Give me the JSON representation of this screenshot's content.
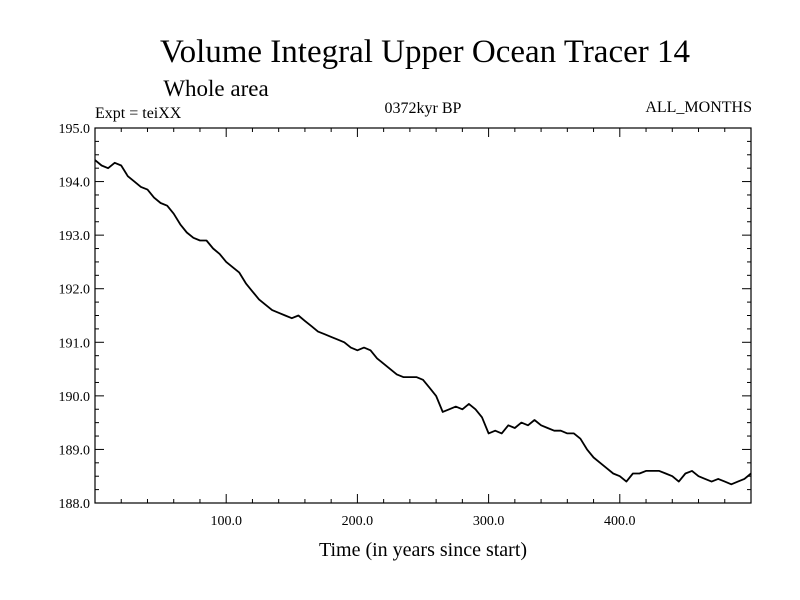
{
  "chart_data": {
    "type": "line",
    "title": "Volume Integral Upper Ocean Tracer 14",
    "subtitle": "Whole area",
    "experiment": "Expt = teiXX",
    "period": "0372kyr BP",
    "months": "ALL_MONTHS",
    "xlabel": "Time (in years since start)",
    "ylabel": "",
    "xlim": [
      0,
      500
    ],
    "ylim": [
      188.0,
      195.0
    ],
    "x_ticks": [
      100,
      200,
      300,
      400
    ],
    "x_tick_labels": [
      "100.0",
      "200.0",
      "300.0",
      "400.0"
    ],
    "y_ticks": [
      188,
      189,
      190,
      191,
      192,
      193,
      194,
      195
    ],
    "y_tick_labels": [
      "188.0",
      "189.0",
      "190.0",
      "191.0",
      "192.0",
      "193.0",
      "194.0",
      "195.0"
    ],
    "grid": false,
    "series": [
      {
        "name": "Tracer 14",
        "x": [
          0,
          5,
          10,
          15,
          20,
          25,
          30,
          35,
          40,
          45,
          50,
          55,
          60,
          65,
          70,
          75,
          80,
          85,
          90,
          95,
          100,
          105,
          110,
          115,
          120,
          125,
          130,
          135,
          140,
          145,
          150,
          155,
          160,
          165,
          170,
          175,
          180,
          185,
          190,
          195,
          200,
          205,
          210,
          215,
          220,
          225,
          230,
          235,
          240,
          245,
          250,
          255,
          260,
          265,
          270,
          275,
          280,
          285,
          290,
          295,
          300,
          305,
          310,
          315,
          320,
          325,
          330,
          335,
          340,
          345,
          350,
          355,
          360,
          365,
          370,
          375,
          380,
          385,
          390,
          395,
          400,
          405,
          410,
          415,
          420,
          425,
          430,
          435,
          440,
          445,
          450,
          455,
          460,
          465,
          470,
          475,
          480,
          485,
          490,
          495,
          500
        ],
        "values": [
          194.4,
          194.3,
          194.25,
          194.35,
          194.3,
          194.1,
          194.0,
          193.9,
          193.85,
          193.7,
          193.6,
          193.55,
          193.4,
          193.2,
          193.05,
          192.95,
          192.9,
          192.9,
          192.75,
          192.65,
          192.5,
          192.4,
          192.3,
          192.1,
          191.95,
          191.8,
          191.7,
          191.6,
          191.55,
          191.5,
          191.45,
          191.5,
          191.4,
          191.3,
          191.2,
          191.15,
          191.1,
          191.05,
          191.0,
          190.9,
          190.85,
          190.9,
          190.85,
          190.7,
          190.6,
          190.5,
          190.4,
          190.35,
          190.35,
          190.35,
          190.3,
          190.15,
          190.0,
          189.7,
          189.75,
          189.8,
          189.75,
          189.85,
          189.75,
          189.6,
          189.3,
          189.35,
          189.3,
          189.45,
          189.4,
          189.5,
          189.45,
          189.55,
          189.45,
          189.4,
          189.35,
          189.35,
          189.3,
          189.3,
          189.2,
          189.0,
          188.85,
          188.75,
          188.65,
          188.55,
          188.5,
          188.4,
          188.55,
          188.55,
          188.6,
          188.6,
          188.6,
          188.55,
          188.5,
          188.4,
          188.55,
          188.6,
          188.5,
          188.45,
          188.4,
          188.45,
          188.4,
          188.35,
          188.4,
          188.45,
          188.55
        ]
      }
    ]
  },
  "colors": {
    "line": "#000000",
    "frame": "#000000",
    "background": "#ffffff"
  }
}
